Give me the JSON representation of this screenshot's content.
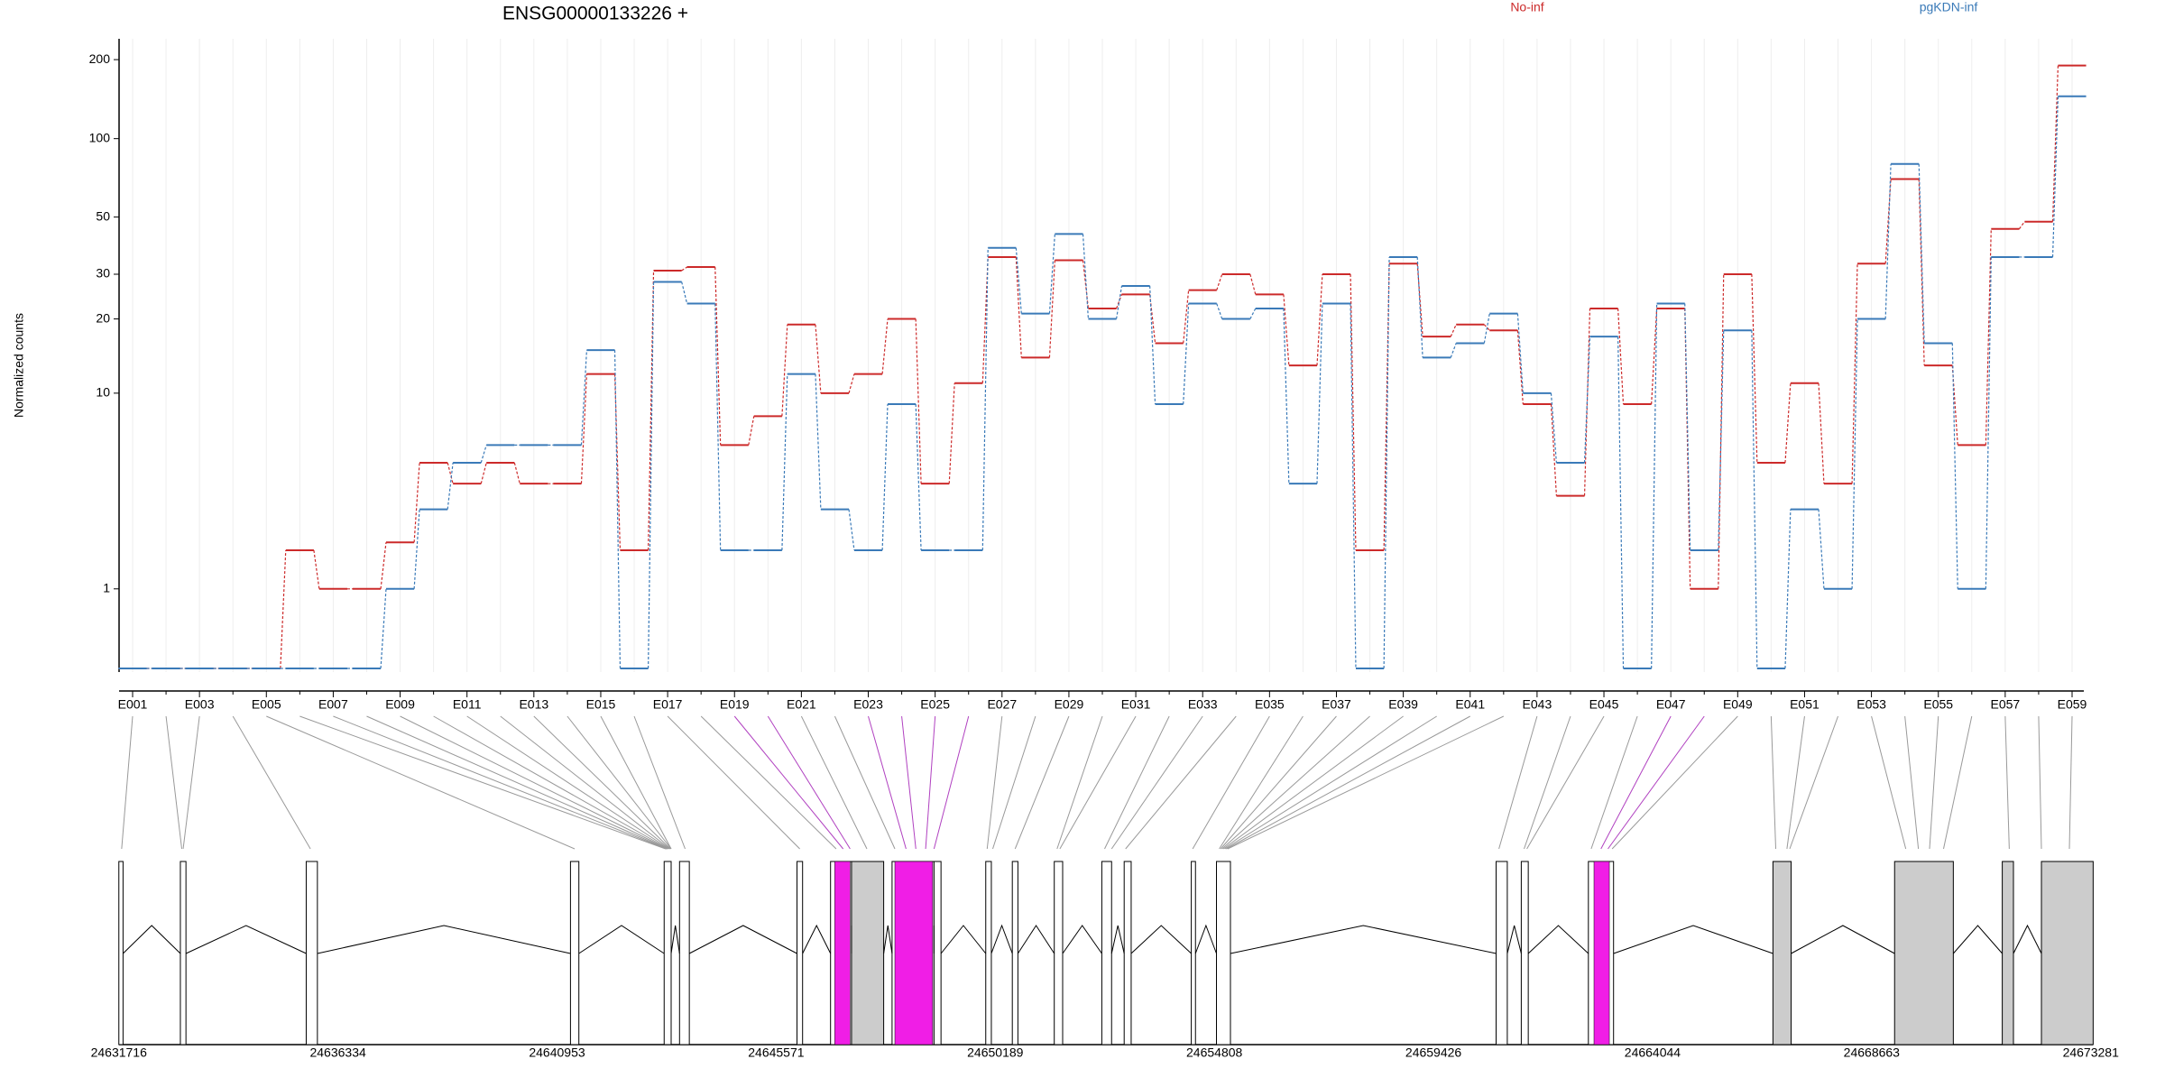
{
  "chart_data": {
    "type": "line",
    "title": "ENSG00000133226 +",
    "ylabel": "Normalized counts",
    "yscale": "log1p",
    "categories": [
      "E001",
      null,
      "E003",
      null,
      "E005",
      null,
      "E007",
      null,
      "E009",
      null,
      "E011",
      null,
      "E013",
      null,
      "E015",
      null,
      "E017",
      null,
      "E019",
      null,
      "E021",
      null,
      "E023",
      null,
      "E025",
      null,
      "E027",
      null,
      "E029",
      null,
      "E031",
      null,
      "E033",
      null,
      "E035",
      null,
      "E037",
      null,
      "E039",
      null,
      "E041",
      null,
      "E043",
      null,
      "E045",
      null,
      "E047",
      null,
      "E049",
      null,
      "E051",
      null,
      "E053",
      null,
      "E055",
      null,
      "E057",
      null,
      "E059"
    ],
    "series": [
      {
        "name": "No-inf",
        "color": "#cc2a2a",
        "values": [
          0,
          0,
          0,
          0,
          0,
          1.8,
          1,
          1,
          2,
          5,
          4,
          5,
          4,
          4,
          12,
          1.8,
          31,
          32,
          6,
          8,
          19,
          10,
          12,
          20,
          4,
          11,
          35,
          14,
          34,
          22,
          25,
          16,
          26,
          30,
          25,
          13,
          30,
          1.8,
          33,
          17,
          19,
          18,
          9,
          3.5,
          22,
          9,
          22,
          1,
          30,
          5,
          11,
          4,
          33,
          70,
          13,
          6,
          45,
          48,
          190
        ]
      },
      {
        "name": "pgKDN-inf",
        "color": "#3a7ab8",
        "values": [
          0,
          0,
          0,
          0,
          0,
          0,
          0,
          0,
          1,
          3,
          5,
          6,
          6,
          6,
          15,
          0,
          28,
          23,
          1.8,
          1.8,
          12,
          3,
          1.8,
          9,
          1.8,
          1.8,
          38,
          21,
          43,
          20,
          27,
          9,
          23,
          20,
          22,
          4,
          23,
          0,
          35,
          14,
          16,
          21,
          10,
          5,
          17,
          0,
          23,
          1.8,
          18,
          0,
          3,
          1,
          20,
          80,
          16,
          1,
          35,
          35,
          145
        ]
      }
    ],
    "ylim": [
      0,
      240
    ],
    "yticks": [
      1,
      10,
      20,
      30,
      50,
      100,
      200
    ],
    "genome_ticks": [
      24631716,
      24636334,
      24640953,
      24645571,
      24650189,
      24654808,
      24659426,
      24664044,
      24668663,
      24673281
    ]
  }
}
